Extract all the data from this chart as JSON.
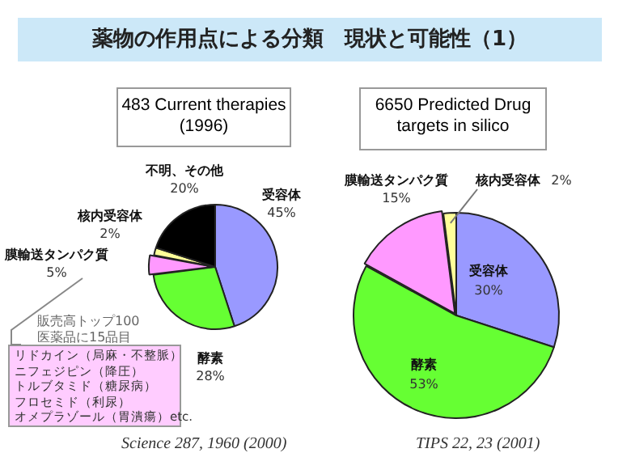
{
  "chart_data": [
    {
      "type": "pie",
      "title": "483 Current therapies (1996)",
      "categories": [
        "受容体",
        "酵素",
        "膜輸送タンパク質",
        "核内受容体",
        "不明、その他"
      ],
      "values": [
        45,
        28,
        5,
        2,
        20
      ],
      "value_labels": [
        "45%",
        "28%",
        "5%",
        "2%",
        "20%"
      ],
      "colors": [
        "#9999ff",
        "#66ff33",
        "#ff99ff",
        "#ffff99",
        "#000000"
      ],
      "legend": false,
      "annotations": [
        "薬物の作用点による分類　現状と可能性（1）",
        "販売高トップ100",
        "医薬品に15品目",
        "リドカイン（局麻・不整脈）",
        "ニフェジピン（降圧）",
        "トルブタミド（糖尿病）",
        "フロセミド（利尿）",
        "オメプラゾール（胃潰瘍）etc.",
        "Science 287, 1960 (2000)"
      ]
    },
    {
      "type": "pie",
      "title": "6650 Predicted Drug targets in silico",
      "categories": [
        "受容体",
        "酵素",
        "膜輸送タンパク質",
        "核内受容体"
      ],
      "values": [
        30,
        53,
        15,
        2
      ],
      "value_labels": [
        "30%",
        "53%",
        "15%",
        "2%"
      ],
      "colors": [
        "#9999ff",
        "#66ff33",
        "#ff99ff",
        "#ffff99"
      ],
      "legend": false,
      "annotations": [
        "TIPS 22, 23 (2001)"
      ]
    }
  ]
}
